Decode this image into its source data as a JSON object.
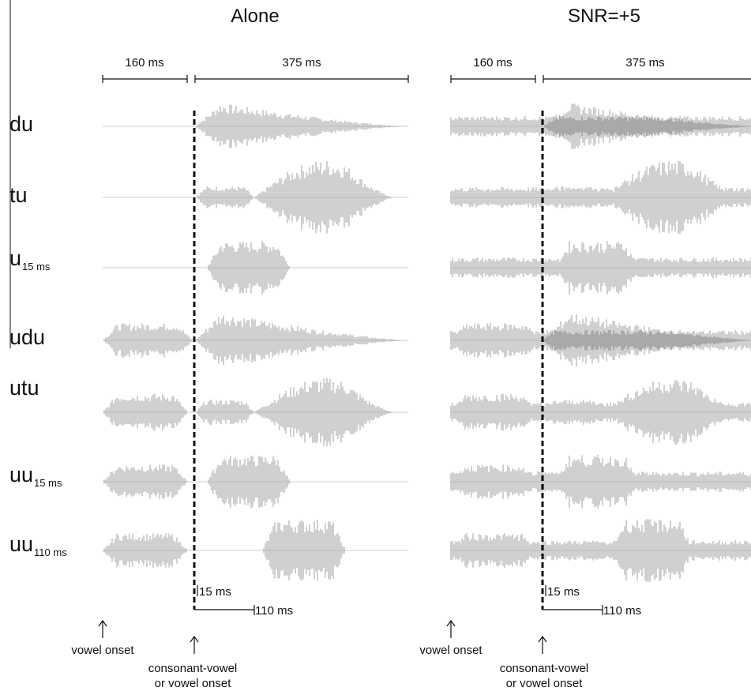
{
  "panels": [
    {
      "title": "Alone",
      "pre_duration": "160 ms",
      "main_duration": "375 ms",
      "short_gap": "15 ms",
      "long_gap": "110 ms",
      "vowel_onset": "vowel onset",
      "cv_onset_line1": "consonant-vowel",
      "cv_onset_line2": "or vowel onset"
    },
    {
      "title": "SNR=+5",
      "pre_duration": "160 ms",
      "main_duration": "375 ms",
      "short_gap": "15 ms",
      "long_gap": "110 ms",
      "vowel_onset": "vowel onset",
      "cv_onset_line1": "consonant-vowel",
      "cv_onset_line2": "or vowel onset"
    }
  ],
  "rows": [
    {
      "label": "du",
      "sub": ""
    },
    {
      "label": "tu",
      "sub": ""
    },
    {
      "label": "u",
      "sub": "15 ms"
    },
    {
      "label": "udu",
      "sub": ""
    },
    {
      "label": "utu",
      "sub": ""
    },
    {
      "label": "uu",
      "sub": "15 ms"
    },
    {
      "label": "uu",
      "sub": "110 ms"
    }
  ],
  "colors": {
    "ink": "#111111",
    "wave": "#a9a9a9",
    "wave_light": "#c8c8c8",
    "baseline": "#cfcfcf"
  }
}
